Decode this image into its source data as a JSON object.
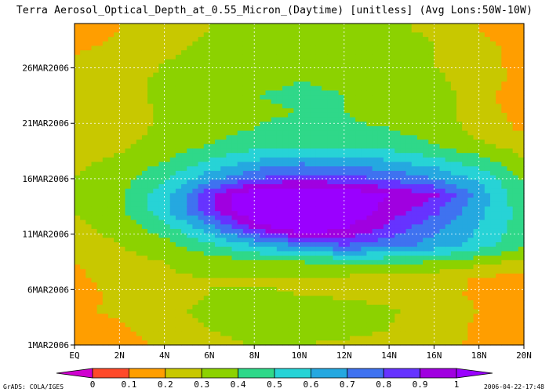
{
  "chart_data": {
    "type": "heatmap",
    "title": "Terra Aerosol_Optical_Depth_at_0.55_Micron_(Daytime) [unitless] (Avg Lons:50W-10W)",
    "xlabel": "",
    "ylabel": "",
    "x_tick_labels": [
      "EQ",
      "2N",
      "4N",
      "6N",
      "8N",
      "10N",
      "12N",
      "14N",
      "16N",
      "18N",
      "20N"
    ],
    "x_ticks_deg": [
      0,
      2,
      4,
      6,
      8,
      10,
      12,
      14,
      16,
      18,
      20
    ],
    "xlim": [
      0,
      20
    ],
    "y_tick_labels": [
      "1MAR2006",
      "6MAR2006",
      "11MAR2006",
      "16MAR2006",
      "21MAR2006",
      "26MAR2006"
    ],
    "y_ticks_day": [
      1,
      6,
      11,
      16,
      21,
      26
    ],
    "ylim_day": [
      1,
      30
    ],
    "grid": true,
    "colorbar": {
      "levels": [
        "0",
        "0.1",
        "0.2",
        "0.3",
        "0.4",
        "0.5",
        "0.6",
        "0.7",
        "0.8",
        "0.9",
        "1"
      ],
      "colors": [
        "#d000d0",
        "#ff4a2a",
        "#ff9e00",
        "#c8c800",
        "#8cd200",
        "#2fd889",
        "#27d3d6",
        "#25a8e0",
        "#3f72f0",
        "#6633ff",
        "#a000e0",
        "#9a00ff"
      ]
    },
    "lat": [
      0,
      2,
      4,
      6,
      8,
      10,
      12,
      14,
      16,
      18,
      20
    ],
    "day": [
      1,
      2.5,
      4,
      5.5,
      7,
      8.5,
      10,
      11.5,
      13,
      14.5,
      16,
      17.5,
      19,
      20.5,
      22,
      23.5,
      25,
      26.5,
      28,
      29.5
    ],
    "values": [
      [
        0.15,
        0.15,
        0.22,
        0.28,
        0.3,
        0.3,
        0.29,
        0.28,
        0.24,
        0.18,
        0.14
      ],
      [
        0.15,
        0.18,
        0.25,
        0.3,
        0.33,
        0.33,
        0.32,
        0.3,
        0.25,
        0.18,
        0.15
      ],
      [
        0.18,
        0.22,
        0.28,
        0.32,
        0.34,
        0.34,
        0.33,
        0.31,
        0.27,
        0.2,
        0.16
      ],
      [
        0.16,
        0.22,
        0.28,
        0.3,
        0.31,
        0.3,
        0.29,
        0.28,
        0.24,
        0.18,
        0.15
      ],
      [
        0.18,
        0.24,
        0.29,
        0.3,
        0.29,
        0.29,
        0.28,
        0.26,
        0.23,
        0.19,
        0.15
      ],
      [
        0.2,
        0.26,
        0.3,
        0.34,
        0.38,
        0.4,
        0.42,
        0.42,
        0.4,
        0.34,
        0.27
      ],
      [
        0.24,
        0.3,
        0.36,
        0.48,
        0.6,
        0.72,
        0.8,
        0.75,
        0.66,
        0.55,
        0.42
      ],
      [
        0.28,
        0.33,
        0.45,
        0.65,
        0.92,
        1.08,
        1.02,
        0.86,
        0.72,
        0.6,
        0.45
      ],
      [
        0.3,
        0.38,
        0.56,
        0.85,
        1.12,
        1.15,
        1.08,
        0.96,
        0.82,
        0.62,
        0.45
      ],
      [
        0.3,
        0.38,
        0.56,
        0.88,
        1.12,
        1.15,
        1.1,
        1.0,
        0.92,
        0.66,
        0.42
      ],
      [
        0.3,
        0.36,
        0.48,
        0.66,
        0.8,
        0.86,
        0.84,
        0.78,
        0.7,
        0.58,
        0.38
      ],
      [
        0.28,
        0.32,
        0.4,
        0.52,
        0.62,
        0.68,
        0.66,
        0.62,
        0.55,
        0.45,
        0.32
      ],
      [
        0.24,
        0.28,
        0.34,
        0.4,
        0.45,
        0.47,
        0.46,
        0.45,
        0.4,
        0.32,
        0.25
      ],
      [
        0.2,
        0.26,
        0.32,
        0.37,
        0.4,
        0.42,
        0.41,
        0.4,
        0.36,
        0.26,
        0.18
      ],
      [
        0.2,
        0.26,
        0.31,
        0.36,
        0.39,
        0.4,
        0.4,
        0.38,
        0.35,
        0.25,
        0.16
      ],
      [
        0.22,
        0.27,
        0.32,
        0.38,
        0.4,
        0.41,
        0.4,
        0.38,
        0.34,
        0.26,
        0.1
      ],
      [
        0.22,
        0.26,
        0.32,
        0.36,
        0.38,
        0.4,
        0.39,
        0.38,
        0.32,
        0.24,
        0.18
      ],
      [
        0.22,
        0.25,
        0.3,
        0.35,
        0.38,
        0.4,
        0.39,
        0.37,
        0.3,
        0.22,
        0.18
      ],
      [
        0.18,
        0.22,
        0.27,
        0.32,
        0.36,
        0.4,
        0.38,
        0.35,
        0.3,
        0.22,
        0.18
      ],
      [
        0.15,
        0.2,
        0.26,
        0.3,
        0.33,
        0.36,
        0.35,
        0.32,
        0.28,
        0.2,
        0.15
      ]
    ]
  },
  "footer": {
    "credit": "GrADS: COLA/IGES",
    "timestamp": "2006-04-22-17:48"
  }
}
